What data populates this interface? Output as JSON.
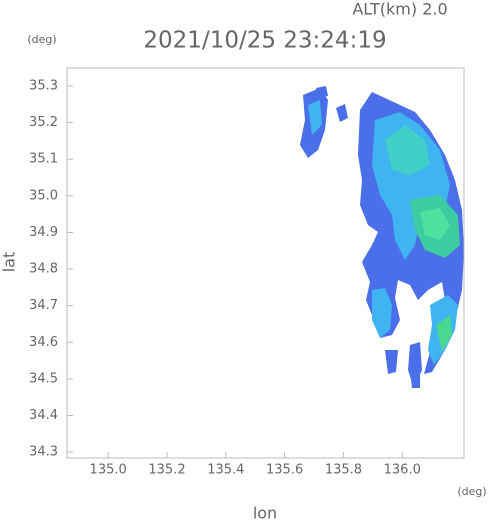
{
  "chart_data": {
    "type": "map",
    "title": "2021/10/25 23:24:19",
    "subtitle": "ALT(km) 2.0",
    "y_unit": "(deg)",
    "x_unit": "(deg)",
    "x_label": "lon",
    "y_label": "lat",
    "xlim": [
      134.86,
      136.21
    ],
    "ylim": [
      34.284,
      35.349
    ],
    "xticks": [
      {
        "value": 135.0,
        "label": "135.0"
      },
      135.2,
      135.4,
      135.6,
      135.8,
      {
        "value": 136.0,
        "label": "136.0"
      }
    ],
    "yticks": [
      34.3,
      34.4,
      34.5,
      34.6,
      34.7,
      34.8,
      34.9,
      {
        "value": 35.0,
        "label": "35.0"
      },
      35.1,
      35.2,
      35.3
    ]
  }
}
